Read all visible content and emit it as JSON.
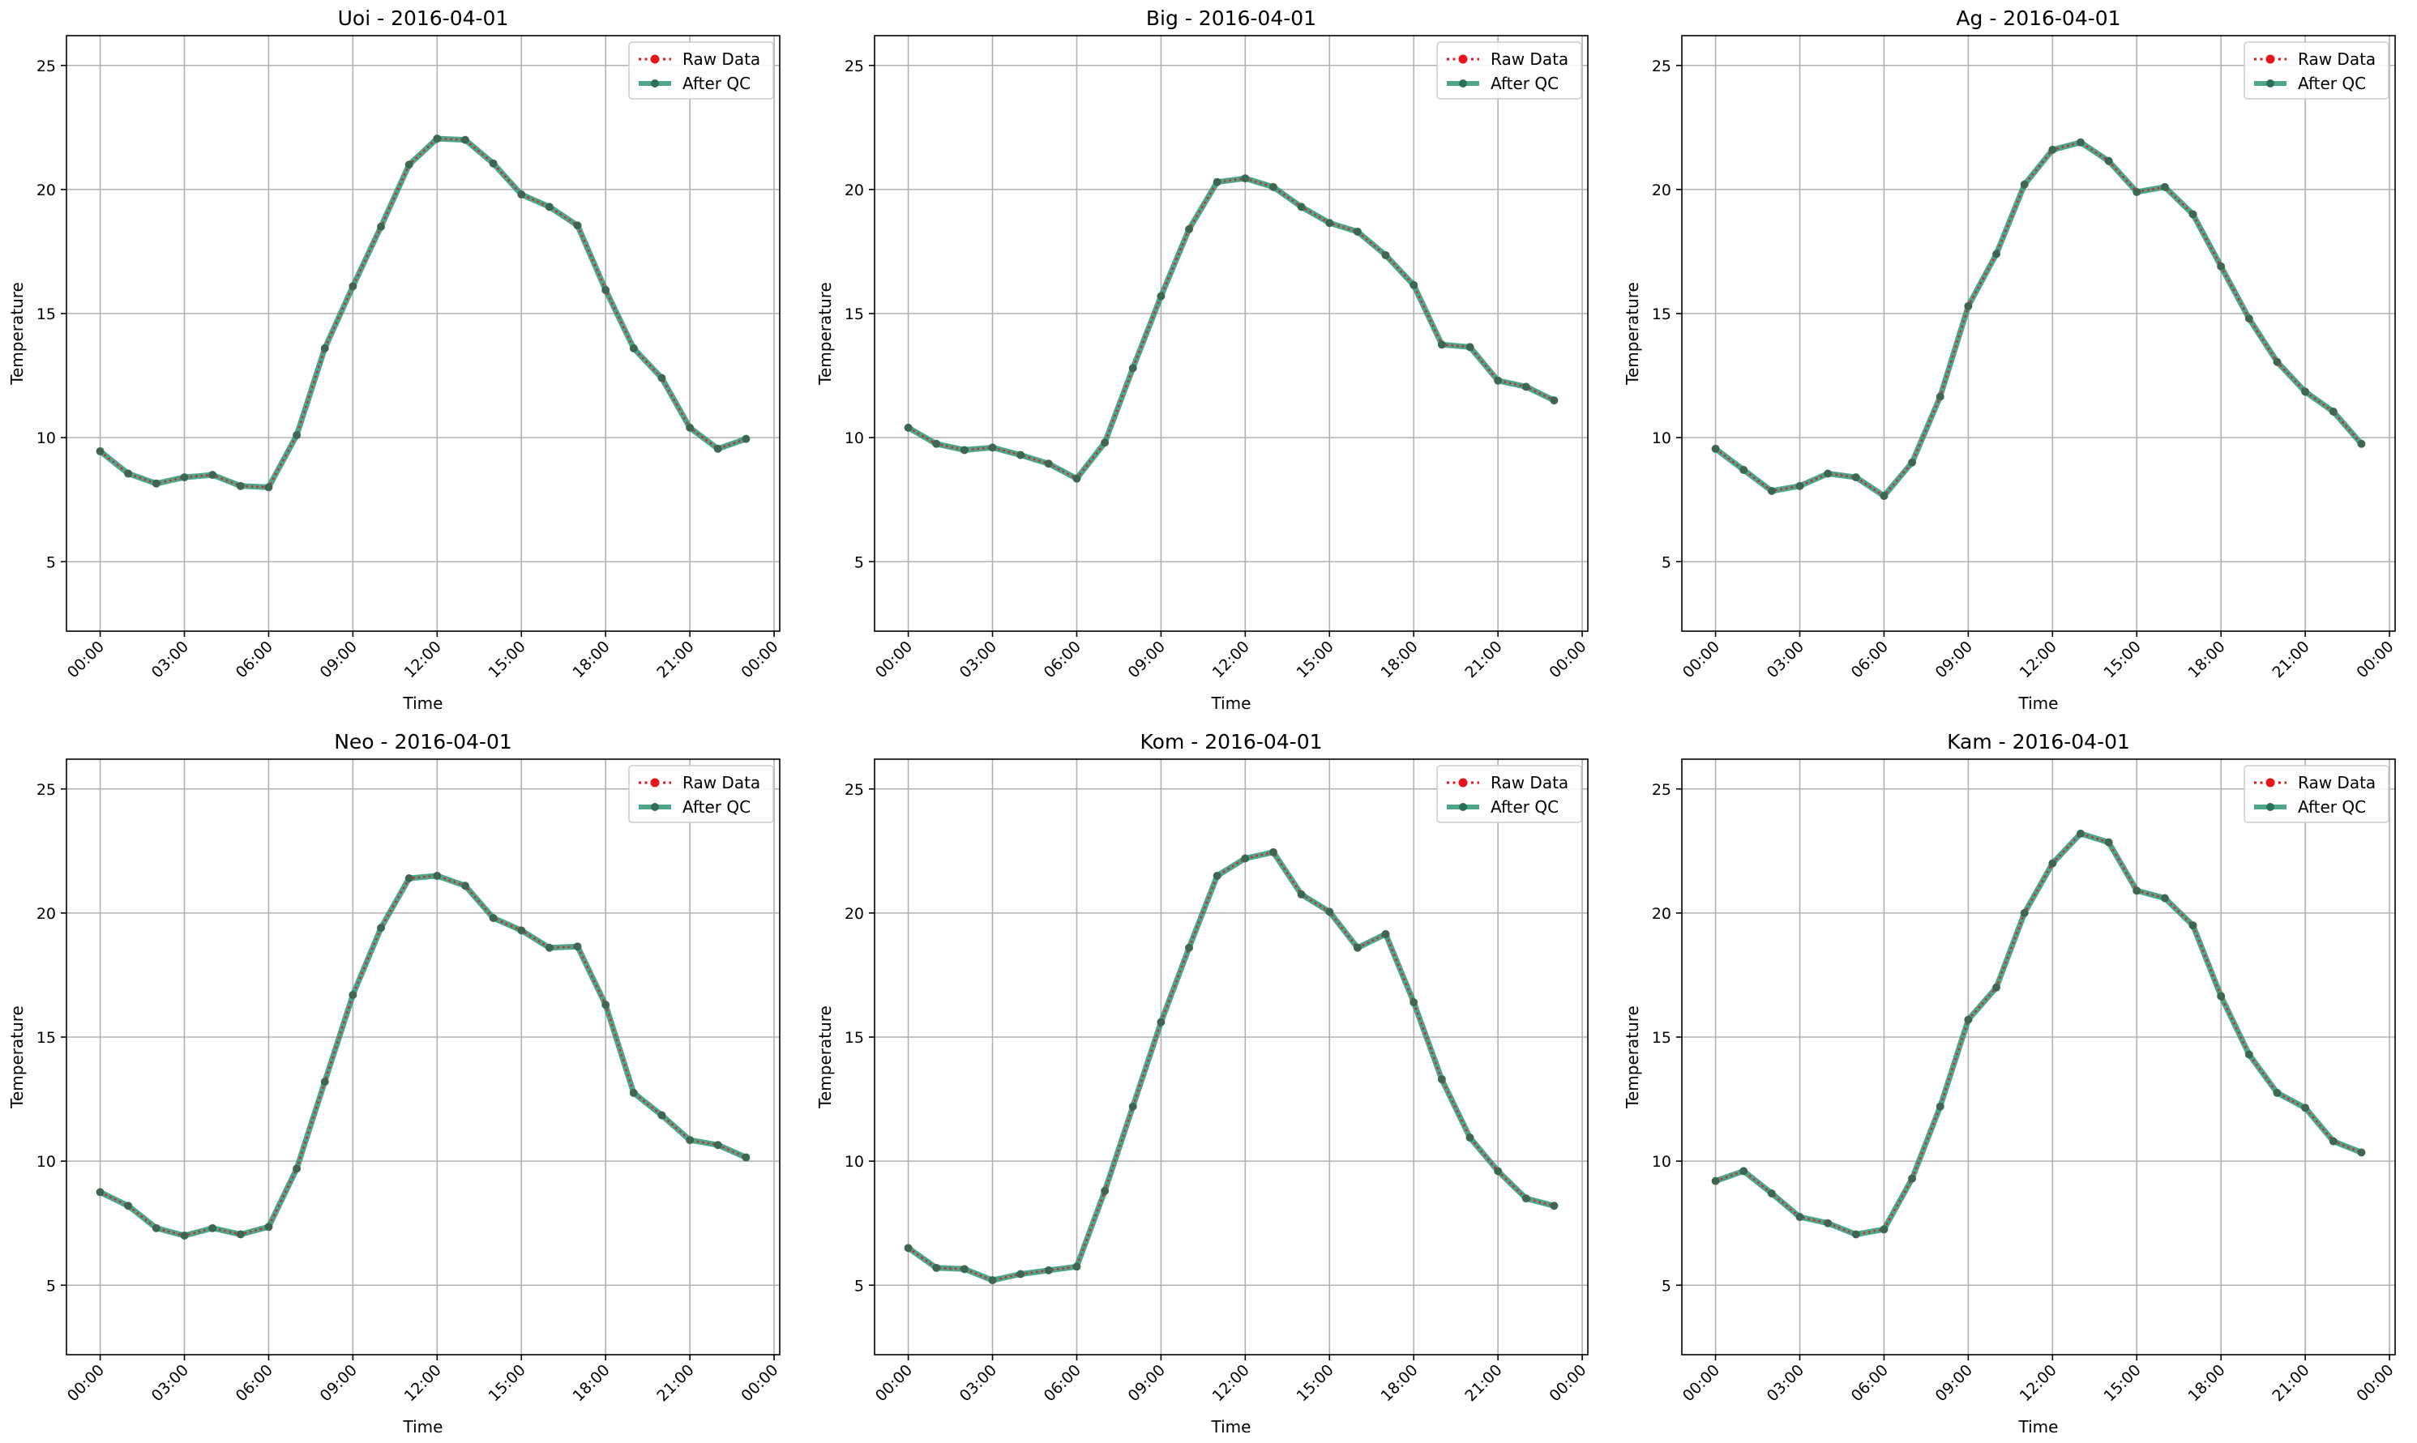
{
  "chart_data": [
    {
      "type": "line",
      "title": "Uoi - 2016-04-01",
      "xlabel": "Time",
      "ylabel": "Temperature",
      "x_ticks": [
        "00:00",
        "03:00",
        "06:00",
        "09:00",
        "12:00",
        "15:00",
        "18:00",
        "21:00",
        "00:00"
      ],
      "y_ticks": [
        "5",
        "10",
        "15",
        "20",
        "25"
      ],
      "ylim": [
        2.2,
        26.2
      ],
      "xlim_hours": [
        -1.2,
        24.2
      ],
      "grid": true,
      "legend": "top-right",
      "x": [
        "00:00",
        "01:00",
        "02:00",
        "03:00",
        "04:00",
        "05:00",
        "06:00",
        "07:00",
        "08:00",
        "09:00",
        "10:00",
        "11:00",
        "12:00",
        "13:00",
        "14:00",
        "15:00",
        "16:00",
        "17:00",
        "18:00",
        "19:00",
        "20:00",
        "21:00",
        "22:00",
        "23:00"
      ],
      "series": [
        {
          "name": "Raw Data",
          "values": [
            9.45,
            8.55,
            8.15,
            8.4,
            8.5,
            8.05,
            8.0,
            10.1,
            13.6,
            16.1,
            18.5,
            21.0,
            22.05,
            22.0,
            21.05,
            19.8,
            19.3,
            18.55,
            15.95,
            13.6,
            12.4,
            10.4,
            9.55,
            9.95
          ]
        },
        {
          "name": "After QC",
          "values": [
            9.45,
            8.55,
            8.15,
            8.4,
            8.5,
            8.05,
            8.0,
            10.1,
            13.6,
            16.1,
            18.5,
            21.0,
            22.05,
            22.0,
            21.05,
            19.8,
            19.3,
            18.55,
            15.95,
            13.6,
            12.4,
            10.4,
            9.55,
            9.95
          ]
        }
      ]
    },
    {
      "type": "line",
      "title": "Big - 2016-04-01",
      "xlabel": "Time",
      "ylabel": "Temperature",
      "x_ticks": [
        "00:00",
        "03:00",
        "06:00",
        "09:00",
        "12:00",
        "15:00",
        "18:00",
        "21:00",
        "00:00"
      ],
      "y_ticks": [
        "5",
        "10",
        "15",
        "20",
        "25"
      ],
      "ylim": [
        2.2,
        26.2
      ],
      "xlim_hours": [
        -1.2,
        24.2
      ],
      "grid": true,
      "legend": "top-right",
      "x": [
        "00:00",
        "01:00",
        "02:00",
        "03:00",
        "04:00",
        "05:00",
        "06:00",
        "07:00",
        "08:00",
        "09:00",
        "10:00",
        "11:00",
        "12:00",
        "13:00",
        "14:00",
        "15:00",
        "16:00",
        "17:00",
        "18:00",
        "19:00",
        "20:00",
        "21:00",
        "22:00",
        "23:00"
      ],
      "series": [
        {
          "name": "Raw Data",
          "values": [
            10.4,
            9.75,
            9.5,
            9.6,
            9.3,
            8.95,
            8.35,
            9.8,
            12.8,
            15.7,
            18.4,
            20.3,
            20.45,
            20.1,
            19.3,
            18.65,
            18.3,
            17.35,
            16.15,
            13.75,
            13.65,
            12.3,
            12.05,
            11.5
          ]
        },
        {
          "name": "After QC",
          "values": [
            10.4,
            9.75,
            9.5,
            9.6,
            9.3,
            8.95,
            8.35,
            9.8,
            12.8,
            15.7,
            18.4,
            20.3,
            20.45,
            20.1,
            19.3,
            18.65,
            18.3,
            17.35,
            16.15,
            13.75,
            13.65,
            12.3,
            12.05,
            11.5
          ]
        }
      ]
    },
    {
      "type": "line",
      "title": "Ag - 2016-04-01",
      "xlabel": "Time",
      "ylabel": "Temperature",
      "x_ticks": [
        "00:00",
        "03:00",
        "06:00",
        "09:00",
        "12:00",
        "15:00",
        "18:00",
        "21:00",
        "00:00"
      ],
      "y_ticks": [
        "5",
        "10",
        "15",
        "20",
        "25"
      ],
      "ylim": [
        2.2,
        26.2
      ],
      "xlim_hours": [
        -1.2,
        24.2
      ],
      "grid": true,
      "legend": "top-right",
      "x": [
        "00:00",
        "01:00",
        "02:00",
        "03:00",
        "04:00",
        "05:00",
        "06:00",
        "07:00",
        "08:00",
        "09:00",
        "10:00",
        "11:00",
        "12:00",
        "13:00",
        "14:00",
        "15:00",
        "16:00",
        "17:00",
        "18:00",
        "19:00",
        "20:00",
        "21:00",
        "22:00",
        "23:00"
      ],
      "series": [
        {
          "name": "Raw Data",
          "values": [
            9.55,
            8.7,
            7.85,
            8.05,
            8.55,
            8.4,
            7.65,
            9.0,
            11.65,
            15.3,
            17.4,
            20.2,
            21.6,
            21.9,
            21.15,
            19.9,
            20.1,
            19.0,
            16.9,
            14.8,
            13.05,
            11.85,
            11.05,
            9.75
          ]
        },
        {
          "name": "After QC",
          "values": [
            9.55,
            8.7,
            7.85,
            8.05,
            8.55,
            8.4,
            7.65,
            9.0,
            11.65,
            15.3,
            17.4,
            20.2,
            21.6,
            21.9,
            21.15,
            19.9,
            20.1,
            19.0,
            16.9,
            14.8,
            13.05,
            11.85,
            11.05,
            9.75
          ]
        }
      ]
    },
    {
      "type": "line",
      "title": "Neo - 2016-04-01",
      "xlabel": "Time",
      "ylabel": "Temperature",
      "x_ticks": [
        "00:00",
        "03:00",
        "06:00",
        "09:00",
        "12:00",
        "15:00",
        "18:00",
        "21:00",
        "00:00"
      ],
      "y_ticks": [
        "5",
        "10",
        "15",
        "20",
        "25"
      ],
      "ylim": [
        2.2,
        26.2
      ],
      "xlim_hours": [
        -1.2,
        24.2
      ],
      "grid": true,
      "legend": "top-right",
      "x": [
        "00:00",
        "01:00",
        "02:00",
        "03:00",
        "04:00",
        "05:00",
        "06:00",
        "07:00",
        "08:00",
        "09:00",
        "10:00",
        "11:00",
        "12:00",
        "13:00",
        "14:00",
        "15:00",
        "16:00",
        "17:00",
        "18:00",
        "19:00",
        "20:00",
        "21:00",
        "22:00",
        "23:00"
      ],
      "series": [
        {
          "name": "Raw Data",
          "values": [
            8.75,
            8.2,
            7.3,
            7.0,
            7.3,
            7.05,
            7.35,
            9.7,
            13.2,
            16.7,
            19.4,
            21.4,
            21.5,
            21.1,
            19.8,
            19.3,
            18.6,
            18.65,
            16.3,
            12.75,
            11.85,
            10.85,
            10.65,
            10.15
          ]
        },
        {
          "name": "After QC",
          "values": [
            8.75,
            8.2,
            7.3,
            7.0,
            7.3,
            7.05,
            7.35,
            9.7,
            13.2,
            16.7,
            19.4,
            21.4,
            21.5,
            21.1,
            19.8,
            19.3,
            18.6,
            18.65,
            16.3,
            12.75,
            11.85,
            10.85,
            10.65,
            10.15
          ]
        }
      ]
    },
    {
      "type": "line",
      "title": "Kom - 2016-04-01",
      "xlabel": "Time",
      "ylabel": "Temperature",
      "x_ticks": [
        "00:00",
        "03:00",
        "06:00",
        "09:00",
        "12:00",
        "15:00",
        "18:00",
        "21:00",
        "00:00"
      ],
      "y_ticks": [
        "5",
        "10",
        "15",
        "20",
        "25"
      ],
      "ylim": [
        2.2,
        26.2
      ],
      "xlim_hours": [
        -1.2,
        24.2
      ],
      "grid": true,
      "legend": "top-right",
      "x": [
        "00:00",
        "01:00",
        "02:00",
        "03:00",
        "04:00",
        "05:00",
        "06:00",
        "07:00",
        "08:00",
        "09:00",
        "10:00",
        "11:00",
        "12:00",
        "13:00",
        "14:00",
        "15:00",
        "16:00",
        "17:00",
        "18:00",
        "19:00",
        "20:00",
        "21:00",
        "22:00",
        "23:00"
      ],
      "series": [
        {
          "name": "Raw Data",
          "values": [
            6.5,
            5.7,
            5.65,
            5.2,
            5.45,
            5.6,
            5.75,
            8.8,
            12.2,
            15.6,
            18.6,
            21.5,
            22.2,
            22.45,
            20.75,
            20.05,
            18.6,
            19.15,
            16.4,
            13.3,
            10.95,
            9.6,
            8.5,
            8.2
          ]
        },
        {
          "name": "After QC",
          "values": [
            6.5,
            5.7,
            5.65,
            5.2,
            5.45,
            5.6,
            5.75,
            8.8,
            12.2,
            15.6,
            18.6,
            21.5,
            22.2,
            22.45,
            20.75,
            20.05,
            18.6,
            19.15,
            16.4,
            13.3,
            10.95,
            9.6,
            8.5,
            8.2
          ]
        }
      ]
    },
    {
      "type": "line",
      "title": "Kam - 2016-04-01",
      "xlabel": "Time",
      "ylabel": "Temperature",
      "x_ticks": [
        "00:00",
        "03:00",
        "06:00",
        "09:00",
        "12:00",
        "15:00",
        "18:00",
        "21:00",
        "00:00"
      ],
      "y_ticks": [
        "5",
        "10",
        "15",
        "20",
        "25"
      ],
      "ylim": [
        2.2,
        26.2
      ],
      "xlim_hours": [
        -1.2,
        24.2
      ],
      "grid": true,
      "legend": "top-right",
      "x": [
        "00:00",
        "01:00",
        "02:00",
        "03:00",
        "04:00",
        "05:00",
        "06:00",
        "07:00",
        "08:00",
        "09:00",
        "10:00",
        "11:00",
        "12:00",
        "13:00",
        "14:00",
        "15:00",
        "16:00",
        "17:00",
        "18:00",
        "19:00",
        "20:00",
        "21:00",
        "22:00",
        "23:00"
      ],
      "series": [
        {
          "name": "Raw Data",
          "values": [
            9.2,
            9.6,
            8.7,
            7.75,
            7.5,
            7.05,
            7.25,
            9.3,
            12.2,
            15.7,
            17.0,
            20.0,
            22.0,
            23.2,
            22.85,
            20.9,
            20.6,
            19.5,
            16.65,
            14.3,
            12.75,
            12.15,
            10.8,
            10.35
          ]
        },
        {
          "name": "After QC",
          "values": [
            9.2,
            9.6,
            8.7,
            7.75,
            7.5,
            7.05,
            7.25,
            9.3,
            12.2,
            15.7,
            17.0,
            20.0,
            22.0,
            23.2,
            22.85,
            20.9,
            20.6,
            19.5,
            16.65,
            14.3,
            12.75,
            12.15,
            10.8,
            10.35
          ]
        }
      ]
    }
  ],
  "colors": {
    "raw": "#e8141b",
    "qc": "#2e9676",
    "qc_marker": "#2d6e56",
    "grid": "#b0b0b0",
    "axis": "#000000"
  }
}
